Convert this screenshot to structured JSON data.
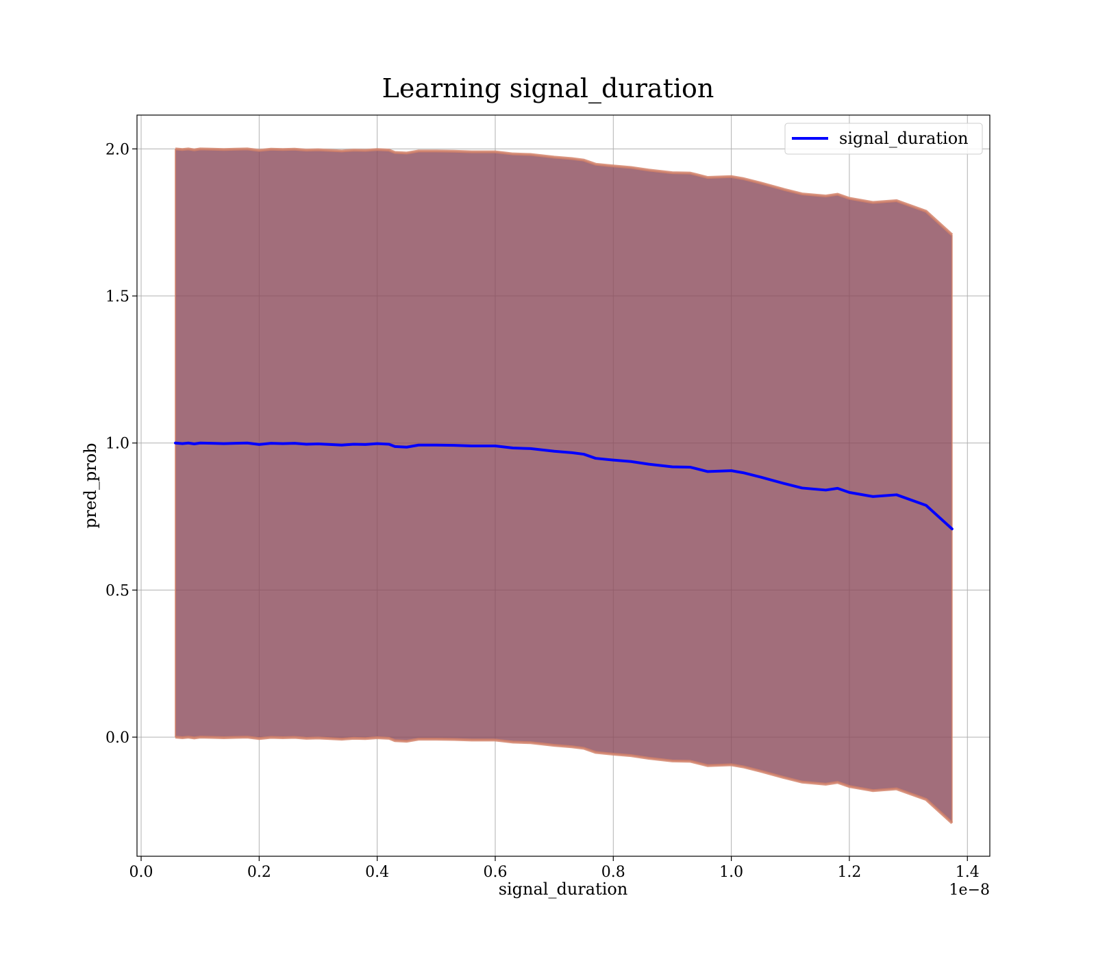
{
  "chart_data": {
    "type": "line",
    "title": "Learning signal_duration",
    "xlabel": "signal_duration",
    "ylabel": "pred_prob",
    "x_offset_label": "1e−8",
    "x_scale": 1e-08,
    "xlim": [
      -0.007,
      1.438
    ],
    "ylim": [
      -0.405,
      2.115
    ],
    "x_ticks": [
      0.0,
      0.2,
      0.4,
      0.6,
      0.8,
      1.0,
      1.2,
      1.4
    ],
    "x_tick_labels": [
      "0.0",
      "0.2",
      "0.4",
      "0.6",
      "0.8",
      "1.0",
      "1.2",
      "1.4"
    ],
    "y_ticks": [
      0.0,
      0.5,
      1.0,
      1.5,
      2.0
    ],
    "y_tick_labels": [
      "0.0",
      "0.5",
      "1.0",
      "1.5",
      "2.0"
    ],
    "grid": true,
    "legend": {
      "placement": "top-right",
      "entries": [
        "signal_duration"
      ]
    },
    "colors": {
      "line": "#0000ff",
      "band_fill": "#8b4a5a",
      "band_edge": "#d4836a",
      "grid": "#b0b0b0"
    },
    "series": [
      {
        "name": "signal_duration",
        "x": [
          0.058,
          0.07,
          0.08,
          0.09,
          0.1,
          0.12,
          0.14,
          0.16,
          0.18,
          0.2,
          0.22,
          0.24,
          0.26,
          0.28,
          0.3,
          0.32,
          0.34,
          0.36,
          0.38,
          0.4,
          0.42,
          0.43,
          0.45,
          0.47,
          0.5,
          0.53,
          0.56,
          0.6,
          0.63,
          0.66,
          0.7,
          0.73,
          0.75,
          0.77,
          0.8,
          0.83,
          0.86,
          0.9,
          0.93,
          0.96,
          1.0,
          1.02,
          1.05,
          1.09,
          1.12,
          1.16,
          1.18,
          1.2,
          1.24,
          1.28,
          1.33,
          1.374
        ],
        "y": [
          1.0,
          0.998,
          1.0,
          0.997,
          1.0,
          0.999,
          0.998,
          0.999,
          1.0,
          0.995,
          0.999,
          0.998,
          0.999,
          0.996,
          0.997,
          0.995,
          0.993,
          0.996,
          0.995,
          0.998,
          0.996,
          0.988,
          0.986,
          0.993,
          0.993,
          0.992,
          0.99,
          0.99,
          0.983,
          0.981,
          0.972,
          0.967,
          0.962,
          0.948,
          0.942,
          0.937,
          0.928,
          0.919,
          0.918,
          0.903,
          0.906,
          0.899,
          0.884,
          0.862,
          0.847,
          0.84,
          0.846,
          0.832,
          0.818,
          0.824,
          0.788,
          0.708
        ]
      }
    ],
    "band": {
      "x": [
        0.058,
        0.07,
        0.08,
        0.09,
        0.1,
        0.12,
        0.14,
        0.16,
        0.18,
        0.2,
        0.22,
        0.24,
        0.26,
        0.28,
        0.3,
        0.32,
        0.34,
        0.36,
        0.38,
        0.4,
        0.42,
        0.43,
        0.45,
        0.47,
        0.5,
        0.53,
        0.56,
        0.6,
        0.63,
        0.66,
        0.7,
        0.73,
        0.75,
        0.77,
        0.8,
        0.83,
        0.86,
        0.9,
        0.93,
        0.96,
        1.0,
        1.02,
        1.05,
        1.09,
        1.12,
        1.16,
        1.18,
        1.2,
        1.24,
        1.28,
        1.33,
        1.374
      ],
      "upper": [
        2.0,
        1.998,
        2.0,
        1.997,
        2.0,
        1.999,
        1.998,
        1.999,
        2.0,
        1.995,
        1.999,
        1.998,
        1.999,
        1.996,
        1.997,
        1.995,
        1.993,
        1.996,
        1.995,
        1.998,
        1.996,
        1.988,
        1.986,
        1.993,
        1.993,
        1.992,
        1.99,
        1.99,
        1.983,
        1.981,
        1.972,
        1.967,
        1.962,
        1.948,
        1.942,
        1.937,
        1.928,
        1.919,
        1.918,
        1.903,
        1.906,
        1.899,
        1.884,
        1.862,
        1.847,
        1.84,
        1.846,
        1.832,
        1.818,
        1.824,
        1.788,
        1.708
      ],
      "lower": [
        0.0,
        -0.002,
        0.0,
        -0.003,
        0.0,
        -0.001,
        -0.002,
        -0.001,
        0.0,
        -0.005,
        -0.001,
        -0.002,
        -0.001,
        -0.004,
        -0.003,
        -0.005,
        -0.007,
        -0.004,
        -0.005,
        -0.002,
        -0.004,
        -0.012,
        -0.014,
        -0.007,
        -0.007,
        -0.008,
        -0.01,
        -0.01,
        -0.017,
        -0.019,
        -0.028,
        -0.033,
        -0.038,
        -0.052,
        -0.058,
        -0.063,
        -0.072,
        -0.081,
        -0.082,
        -0.097,
        -0.094,
        -0.101,
        -0.116,
        -0.138,
        -0.153,
        -0.16,
        -0.154,
        -0.168,
        -0.182,
        -0.176,
        -0.212,
        -0.292
      ]
    }
  }
}
